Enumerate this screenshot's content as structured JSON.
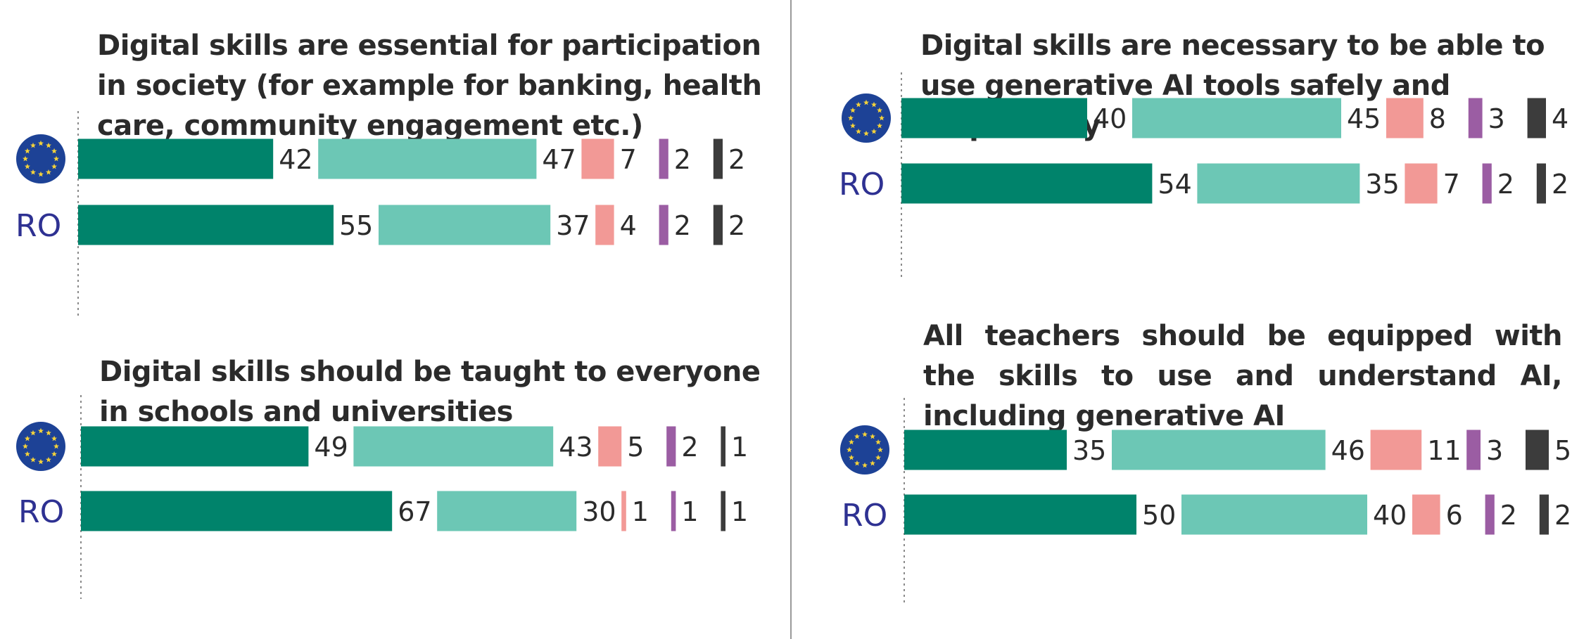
{
  "colors": {
    "totally_agree": "#00836b",
    "tend_to_agree": "#6cc7b5",
    "tend_to_disagree": "#f29996",
    "totally_disagree": "#9b5da3",
    "dont_know": "#3c3c3c",
    "eu_flag_bg": "#1d4296",
    "eu_flag_stars": "#f4d23a",
    "row_label": "#2e3192",
    "divider": "#9a9a9a"
  },
  "row_labels": {
    "ro": "RO"
  },
  "chart_data": [
    {
      "type": "bar",
      "orientation": "horizontal",
      "stacked": true,
      "title": "Digital skills are essential for participation in society (for example for banking, health care, community engagement etc.)",
      "categories": [
        "EU",
        "RO"
      ],
      "series": [
        {
          "values": [
            42,
            55
          ]
        },
        {
          "values": [
            47,
            37
          ]
        },
        {
          "values": [
            7,
            4
          ]
        },
        {
          "values": [
            2,
            2
          ]
        },
        {
          "values": [
            2,
            2
          ]
        }
      ]
    },
    {
      "type": "bar",
      "orientation": "horizontal",
      "stacked": true,
      "title": "Digital skills are necessary to be able to use generative AI tools safely and responsibly",
      "categories": [
        "EU",
        "RO"
      ],
      "series": [
        {
          "values": [
            40,
            54
          ]
        },
        {
          "values": [
            45,
            35
          ]
        },
        {
          "values": [
            8,
            7
          ]
        },
        {
          "values": [
            3,
            2
          ]
        },
        {
          "values": [
            4,
            2
          ]
        }
      ]
    },
    {
      "type": "bar",
      "orientation": "horizontal",
      "stacked": true,
      "title": "Digital skills should be taught to everyone in schools and universities",
      "categories": [
        "EU",
        "RO"
      ],
      "series": [
        {
          "values": [
            49,
            67
          ]
        },
        {
          "values": [
            43,
            30
          ]
        },
        {
          "values": [
            5,
            1
          ]
        },
        {
          "values": [
            2,
            1
          ]
        },
        {
          "values": [
            1,
            1
          ]
        }
      ]
    },
    {
      "type": "bar",
      "orientation": "horizontal",
      "stacked": true,
      "title": "All teachers should be equipped with the skills to use and understand AI, including generative AI",
      "categories": [
        "EU",
        "RO"
      ],
      "series": [
        {
          "values": [
            35,
            50
          ]
        },
        {
          "values": [
            46,
            40
          ]
        },
        {
          "values": [
            11,
            6
          ]
        },
        {
          "values": [
            3,
            2
          ]
        },
        {
          "values": [
            5,
            2
          ]
        }
      ]
    }
  ]
}
